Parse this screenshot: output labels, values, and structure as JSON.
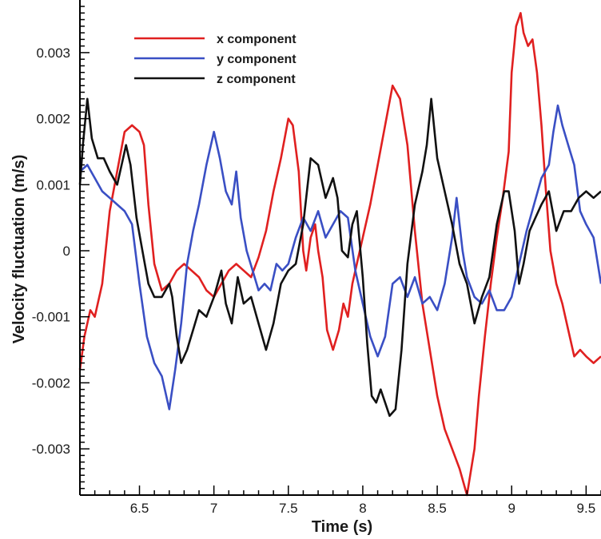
{
  "chart_data": {
    "type": "line",
    "title": "",
    "xlabel": "Time (s)",
    "ylabel": "Velocity fluctuation (m/s)",
    "xlim": [
      6.1,
      9.6
    ],
    "ylim": [
      -0.0037,
      0.0037
    ],
    "x_ticks": [
      6.5,
      7,
      7.5,
      8,
      8.5,
      9,
      9.5
    ],
    "x_tick_labels": [
      "6.5",
      "7",
      "7.5",
      "8",
      "8.5",
      "9",
      "9.5"
    ],
    "y_ticks": [
      0.003,
      0.002,
      0.001,
      0,
      -0.001,
      -0.002,
      -0.003
    ],
    "y_tick_labels": [
      "0.003",
      "0.002",
      "0.001",
      "0",
      "-0.001",
      "-0.002",
      "-0.003"
    ],
    "grid": false,
    "legend_position": "top-left",
    "series": [
      {
        "name": "x component",
        "color": "#e02020",
        "points": [
          [
            6.1,
            -0.0018
          ],
          [
            6.13,
            -0.0013
          ],
          [
            6.17,
            -0.0009
          ],
          [
            6.2,
            -0.001
          ],
          [
            6.25,
            -0.0005
          ],
          [
            6.3,
            0.0006
          ],
          [
            6.35,
            0.0012
          ],
          [
            6.4,
            0.0018
          ],
          [
            6.45,
            0.0019
          ],
          [
            6.5,
            0.0018
          ],
          [
            6.53,
            0.0016
          ],
          [
            6.56,
            0.0007
          ],
          [
            6.6,
            -0.0002
          ],
          [
            6.65,
            -0.0006
          ],
          [
            6.7,
            -0.0005
          ],
          [
            6.75,
            -0.0003
          ],
          [
            6.8,
            -0.0002
          ],
          [
            6.85,
            -0.0003
          ],
          [
            6.9,
            -0.0004
          ],
          [
            6.95,
            -0.0006
          ],
          [
            7.0,
            -0.0007
          ],
          [
            7.05,
            -0.0005
          ],
          [
            7.1,
            -0.0003
          ],
          [
            7.15,
            -0.0002
          ],
          [
            7.2,
            -0.0003
          ],
          [
            7.25,
            -0.0004
          ],
          [
            7.3,
            -0.0001
          ],
          [
            7.35,
            0.0003
          ],
          [
            7.4,
            0.0009
          ],
          [
            7.45,
            0.0014
          ],
          [
            7.5,
            0.002
          ],
          [
            7.53,
            0.0019
          ],
          [
            7.57,
            0.0012
          ],
          [
            7.6,
            0.0
          ],
          [
            7.62,
            -0.0003
          ],
          [
            7.65,
            0.0002
          ],
          [
            7.68,
            0.0004
          ],
          [
            7.7,
            0.0
          ],
          [
            7.73,
            -0.0004
          ],
          [
            7.76,
            -0.0012
          ],
          [
            7.8,
            -0.0015
          ],
          [
            7.84,
            -0.0012
          ],
          [
            7.87,
            -0.0008
          ],
          [
            7.9,
            -0.001
          ],
          [
            7.93,
            -0.0005
          ],
          [
            7.96,
            -0.0002
          ],
          [
            8.0,
            0.0002
          ],
          [
            8.05,
            0.0007
          ],
          [
            8.1,
            0.0013
          ],
          [
            8.15,
            0.0019
          ],
          [
            8.2,
            0.0025
          ],
          [
            8.25,
            0.0023
          ],
          [
            8.3,
            0.0016
          ],
          [
            8.35,
            0.0003
          ],
          [
            8.4,
            -0.0008
          ],
          [
            8.45,
            -0.0015
          ],
          [
            8.5,
            -0.0022
          ],
          [
            8.55,
            -0.0027
          ],
          [
            8.6,
            -0.003
          ],
          [
            8.65,
            -0.0033
          ],
          [
            8.7,
            -0.0037
          ],
          [
            8.75,
            -0.003
          ],
          [
            8.78,
            -0.0022
          ],
          [
            8.82,
            -0.0013
          ],
          [
            8.86,
            -0.0005
          ],
          [
            8.9,
            0.0002
          ],
          [
            8.94,
            0.0008
          ],
          [
            8.98,
            0.0015
          ],
          [
            9.0,
            0.0027
          ],
          [
            9.03,
            0.0034
          ],
          [
            9.06,
            0.0036
          ],
          [
            9.08,
            0.0033
          ],
          [
            9.11,
            0.0031
          ],
          [
            9.14,
            0.0032
          ],
          [
            9.17,
            0.0027
          ],
          [
            9.2,
            0.0019
          ],
          [
            9.23,
            0.0009
          ],
          [
            9.26,
            0.0
          ],
          [
            9.3,
            -0.0005
          ],
          [
            9.34,
            -0.0008
          ],
          [
            9.38,
            -0.0012
          ],
          [
            9.42,
            -0.0016
          ],
          [
            9.46,
            -0.0015
          ],
          [
            9.5,
            -0.0016
          ],
          [
            9.55,
            -0.0017
          ],
          [
            9.6,
            -0.0016
          ]
        ]
      },
      {
        "name": "y component",
        "color": "#3a4fc4",
        "points": [
          [
            6.1,
            0.0012
          ],
          [
            6.15,
            0.0013
          ],
          [
            6.2,
            0.0011
          ],
          [
            6.25,
            0.0009
          ],
          [
            6.3,
            0.0008
          ],
          [
            6.35,
            0.0007
          ],
          [
            6.4,
            0.0006
          ],
          [
            6.45,
            0.0004
          ],
          [
            6.5,
            -0.0005
          ],
          [
            6.55,
            -0.0013
          ],
          [
            6.6,
            -0.0017
          ],
          [
            6.65,
            -0.0019
          ],
          [
            6.7,
            -0.0024
          ],
          [
            6.74,
            -0.0018
          ],
          [
            6.78,
            -0.0011
          ],
          [
            6.82,
            -0.0002
          ],
          [
            6.86,
            0.0003
          ],
          [
            6.9,
            0.0007
          ],
          [
            6.95,
            0.0013
          ],
          [
            7.0,
            0.0018
          ],
          [
            7.04,
            0.0014
          ],
          [
            7.08,
            0.0009
          ],
          [
            7.12,
            0.0007
          ],
          [
            7.15,
            0.0012
          ],
          [
            7.18,
            0.0005
          ],
          [
            7.22,
            0.0
          ],
          [
            7.26,
            -0.0003
          ],
          [
            7.3,
            -0.0006
          ],
          [
            7.34,
            -0.0005
          ],
          [
            7.38,
            -0.0006
          ],
          [
            7.42,
            -0.0002
          ],
          [
            7.46,
            -0.0003
          ],
          [
            7.5,
            -0.0002
          ],
          [
            7.55,
            0.0002
          ],
          [
            7.6,
            0.0005
          ],
          [
            7.65,
            0.0003
          ],
          [
            7.7,
            0.0006
          ],
          [
            7.75,
            0.0002
          ],
          [
            7.8,
            0.0004
          ],
          [
            7.85,
            0.0006
          ],
          [
            7.9,
            0.0005
          ],
          [
            7.95,
            -0.0003
          ],
          [
            8.0,
            -0.0008
          ],
          [
            8.05,
            -0.0013
          ],
          [
            8.1,
            -0.0016
          ],
          [
            8.15,
            -0.0013
          ],
          [
            8.2,
            -0.0005
          ],
          [
            8.25,
            -0.0004
          ],
          [
            8.3,
            -0.0007
          ],
          [
            8.35,
            -0.0004
          ],
          [
            8.4,
            -0.0008
          ],
          [
            8.45,
            -0.0007
          ],
          [
            8.5,
            -0.0009
          ],
          [
            8.55,
            -0.0005
          ],
          [
            8.6,
            0.0002
          ],
          [
            8.63,
            0.0008
          ],
          [
            8.67,
            0.0
          ],
          [
            8.7,
            -0.0004
          ],
          [
            8.75,
            -0.0007
          ],
          [
            8.8,
            -0.0008
          ],
          [
            8.85,
            -0.0006
          ],
          [
            8.9,
            -0.0009
          ],
          [
            8.95,
            -0.0009
          ],
          [
            9.0,
            -0.0007
          ],
          [
            9.05,
            -0.0002
          ],
          [
            9.1,
            0.0003
          ],
          [
            9.15,
            0.0007
          ],
          [
            9.2,
            0.0011
          ],
          [
            9.25,
            0.0013
          ],
          [
            9.28,
            0.0018
          ],
          [
            9.31,
            0.0022
          ],
          [
            9.34,
            0.0019
          ],
          [
            9.38,
            0.0016
          ],
          [
            9.42,
            0.0013
          ],
          [
            9.46,
            0.0006
          ],
          [
            9.5,
            0.0004
          ],
          [
            9.55,
            0.0002
          ],
          [
            9.6,
            -0.0005
          ]
        ]
      },
      {
        "name": "z component",
        "color": "#111111",
        "points": [
          [
            6.1,
            0.001
          ],
          [
            6.12,
            0.0016
          ],
          [
            6.15,
            0.0023
          ],
          [
            6.18,
            0.0017
          ],
          [
            6.22,
            0.0014
          ],
          [
            6.26,
            0.0014
          ],
          [
            6.3,
            0.0012
          ],
          [
            6.35,
            0.001
          ],
          [
            6.38,
            0.0013
          ],
          [
            6.41,
            0.0016
          ],
          [
            6.44,
            0.0013
          ],
          [
            6.48,
            0.0005
          ],
          [
            6.52,
            0.0
          ],
          [
            6.56,
            -0.0005
          ],
          [
            6.6,
            -0.0007
          ],
          [
            6.65,
            -0.0007
          ],
          [
            6.7,
            -0.0005
          ],
          [
            6.72,
            -0.0007
          ],
          [
            6.75,
            -0.0013
          ],
          [
            6.78,
            -0.0017
          ],
          [
            6.82,
            -0.0015
          ],
          [
            6.86,
            -0.0012
          ],
          [
            6.9,
            -0.0009
          ],
          [
            6.95,
            -0.001
          ],
          [
            7.0,
            -0.0007
          ],
          [
            7.05,
            -0.0003
          ],
          [
            7.08,
            -0.0008
          ],
          [
            7.12,
            -0.0011
          ],
          [
            7.16,
            -0.0004
          ],
          [
            7.2,
            -0.0008
          ],
          [
            7.25,
            -0.0007
          ],
          [
            7.3,
            -0.0011
          ],
          [
            7.35,
            -0.0015
          ],
          [
            7.4,
            -0.0011
          ],
          [
            7.45,
            -0.0005
          ],
          [
            7.5,
            -0.0003
          ],
          [
            7.55,
            -0.0002
          ],
          [
            7.6,
            0.0004
          ],
          [
            7.65,
            0.0014
          ],
          [
            7.7,
            0.0013
          ],
          [
            7.75,
            0.0008
          ],
          [
            7.8,
            0.0011
          ],
          [
            7.83,
            0.0008
          ],
          [
            7.86,
            0.0
          ],
          [
            7.9,
            -0.0001
          ],
          [
            7.93,
            0.0004
          ],
          [
            7.96,
            0.0006
          ],
          [
            8.0,
            -0.0004
          ],
          [
            8.03,
            -0.0014
          ],
          [
            8.06,
            -0.0022
          ],
          [
            8.09,
            -0.0023
          ],
          [
            8.12,
            -0.0021
          ],
          [
            8.15,
            -0.0023
          ],
          [
            8.18,
            -0.0025
          ],
          [
            8.22,
            -0.0024
          ],
          [
            8.26,
            -0.0015
          ],
          [
            8.3,
            -0.0002
          ],
          [
            8.35,
            0.0007
          ],
          [
            8.4,
            0.0012
          ],
          [
            8.43,
            0.0016
          ],
          [
            8.46,
            0.0023
          ],
          [
            8.5,
            0.0014
          ],
          [
            8.55,
            0.0009
          ],
          [
            8.6,
            0.0004
          ],
          [
            8.65,
            -0.0002
          ],
          [
            8.7,
            -0.0005
          ],
          [
            8.75,
            -0.0011
          ],
          [
            8.8,
            -0.0007
          ],
          [
            8.85,
            -0.0004
          ],
          [
            8.9,
            0.0004
          ],
          [
            8.95,
            0.0009
          ],
          [
            8.98,
            0.0009
          ],
          [
            9.02,
            0.0003
          ],
          [
            9.05,
            -0.0005
          ],
          [
            9.08,
            -0.0002
          ],
          [
            9.12,
            0.0003
          ],
          [
            9.16,
            0.0005
          ],
          [
            9.2,
            0.0007
          ],
          [
            9.25,
            0.0009
          ],
          [
            9.3,
            0.0003
          ],
          [
            9.35,
            0.0006
          ],
          [
            9.4,
            0.0006
          ],
          [
            9.45,
            0.0008
          ],
          [
            9.5,
            0.0009
          ],
          [
            9.55,
            0.0008
          ],
          [
            9.6,
            0.0009
          ]
        ]
      }
    ]
  }
}
